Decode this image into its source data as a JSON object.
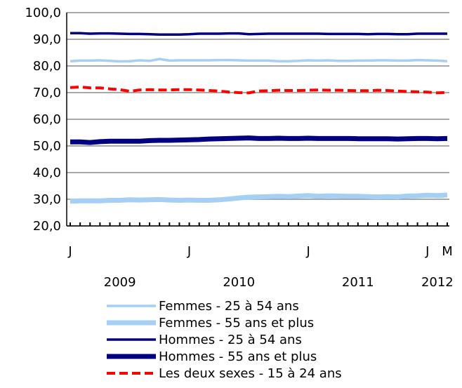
{
  "chart_data": {
    "type": "line",
    "title": "",
    "xlabel": "",
    "ylabel": "",
    "ylim": [
      20,
      100
    ],
    "yticks": [
      "20,0",
      "30,0",
      "40,0",
      "50,0",
      "60,0",
      "70,0",
      "80,0",
      "90,0",
      "100,0"
    ],
    "grid": true,
    "legend_position": "bottom",
    "x": [
      "2009-01",
      "2009-02",
      "2009-03",
      "2009-04",
      "2009-05",
      "2009-06",
      "2009-07",
      "2009-08",
      "2009-09",
      "2009-10",
      "2009-11",
      "2009-12",
      "2010-01",
      "2010-02",
      "2010-03",
      "2010-04",
      "2010-05",
      "2010-06",
      "2010-07",
      "2010-08",
      "2010-09",
      "2010-10",
      "2010-11",
      "2010-12",
      "2011-01",
      "2011-02",
      "2011-03",
      "2011-04",
      "2011-05",
      "2011-06",
      "2011-07",
      "2011-08",
      "2011-09",
      "2011-10",
      "2011-11",
      "2011-12",
      "2012-01",
      "2012-02",
      "2012-03"
    ],
    "month_labels": [
      {
        "x": "2009-01",
        "text": "J"
      },
      {
        "x": "2010-01",
        "text": "J"
      },
      {
        "x": "2011-01",
        "text": "J"
      },
      {
        "x": "2012-01",
        "text": "J"
      },
      {
        "x": "2012-03",
        "text": "M"
      }
    ],
    "year_labels": [
      {
        "x": "2009-06",
        "text": "2009"
      },
      {
        "x": "2010-06",
        "text": "2010"
      },
      {
        "x": "2011-06",
        "text": "2011"
      },
      {
        "x": "2012-02",
        "text": "2012"
      }
    ],
    "series": [
      {
        "name": "Femmes - 25 à 54 ans",
        "color": "#a6cff5",
        "style": "thin",
        "values": [
          81.8,
          82.0,
          82.0,
          82.1,
          81.9,
          81.7,
          81.8,
          82.1,
          81.9,
          82.6,
          82.0,
          82.1,
          82.1,
          82.1,
          82.1,
          82.2,
          82.2,
          82.1,
          82.0,
          82.0,
          82.0,
          81.8,
          81.8,
          81.9,
          82.1,
          82.0,
          82.1,
          81.9,
          81.9,
          82.0,
          82.0,
          82.1,
          82.1,
          82.0,
          82.0,
          82.2,
          82.1,
          82.0,
          81.8
        ]
      },
      {
        "name": "Femmes - 55 ans et plus",
        "color": "#a6cff5",
        "style": "thick",
        "values": [
          29.3,
          29.4,
          29.4,
          29.4,
          29.6,
          29.6,
          29.8,
          29.7,
          29.8,
          29.9,
          29.7,
          29.6,
          29.7,
          29.6,
          29.6,
          29.8,
          30.1,
          30.5,
          30.8,
          30.9,
          31.0,
          31.1,
          31.0,
          31.2,
          31.4,
          31.1,
          31.3,
          31.2,
          31.1,
          31.1,
          31.0,
          30.9,
          31.0,
          30.9,
          31.2,
          31.3,
          31.5,
          31.4,
          31.6
        ]
      },
      {
        "name": "Hommes - 25 à 54 ans",
        "color": "#000080",
        "style": "thin",
        "values": [
          92.3,
          92.3,
          92.1,
          92.2,
          92.2,
          92.1,
          92.0,
          92.0,
          91.9,
          91.8,
          91.8,
          91.8,
          91.9,
          92.1,
          92.1,
          92.1,
          92.2,
          92.2,
          91.9,
          92.0,
          92.1,
          92.1,
          92.1,
          92.1,
          92.1,
          92.1,
          92.0,
          92.0,
          92.0,
          92.0,
          91.9,
          92.0,
          92.0,
          91.9,
          91.9,
          92.1,
          92.1,
          92.1,
          92.1
        ]
      },
      {
        "name": "Hommes - 55 ans et plus",
        "color": "#000080",
        "style": "thick",
        "values": [
          51.5,
          51.5,
          51.3,
          51.6,
          51.8,
          51.8,
          51.8,
          51.8,
          52.0,
          52.1,
          52.1,
          52.2,
          52.3,
          52.4,
          52.6,
          52.7,
          52.8,
          52.9,
          53.0,
          52.8,
          52.8,
          52.9,
          52.8,
          52.8,
          52.9,
          52.8,
          52.8,
          52.8,
          52.8,
          52.7,
          52.7,
          52.7,
          52.7,
          52.6,
          52.7,
          52.8,
          52.8,
          52.7,
          52.8
        ]
      },
      {
        "name": "Les deux sexes - 15 à 24 ans",
        "color": "#ff0000",
        "style": "dashed",
        "values": [
          71.9,
          72.1,
          71.8,
          71.8,
          71.4,
          71.1,
          70.5,
          71.0,
          71.1,
          71.0,
          71.0,
          71.1,
          71.1,
          71.0,
          70.8,
          70.6,
          70.2,
          70.0,
          69.9,
          70.6,
          70.7,
          70.9,
          70.8,
          70.8,
          70.9,
          71.0,
          70.9,
          70.9,
          70.8,
          70.7,
          70.7,
          70.9,
          70.8,
          70.6,
          70.4,
          70.3,
          70.2,
          69.9,
          70.1
        ]
      }
    ]
  }
}
